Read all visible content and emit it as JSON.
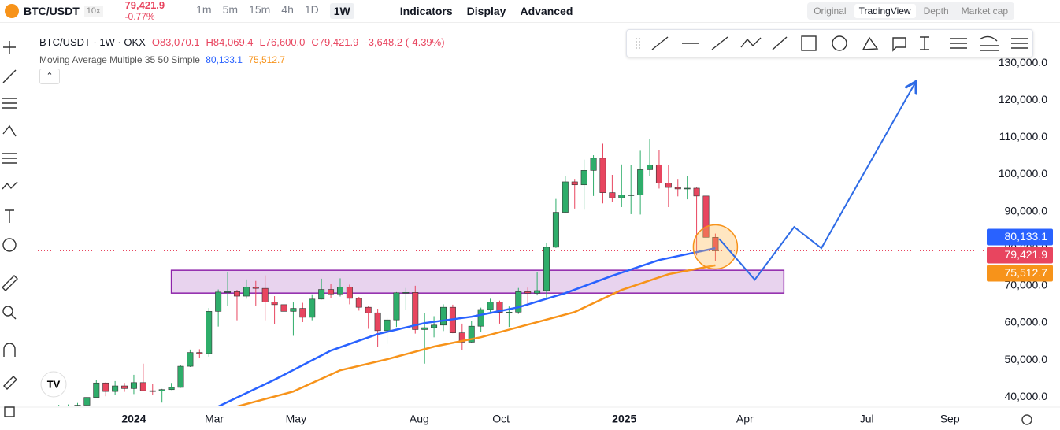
{
  "ui": {
    "symbol": "BTC/USDT",
    "leverage": "10x",
    "last_price": "79,421.9",
    "change": "-0.77%",
    "intervals": [
      "1m",
      "5m",
      "15m",
      "4h",
      "1D",
      "1W"
    ],
    "menu": [
      "Indicators",
      "Display",
      "Advanced"
    ],
    "views": [
      "Original",
      "TradingView",
      "Depth",
      "Market cap"
    ]
  },
  "legend": {
    "symbol_line": "BTC/USDT · 1W · OKX",
    "ohlc": [
      "O83,070.1",
      "H84,069.4",
      "L76,600.0",
      "C79,421.9",
      "-3,648.2 (-4.39%)"
    ],
    "indicator": "Moving Average Multiple 35 50 Simple"
  },
  "chart_data": {
    "type": "candlestick",
    "categories": [
      null,
      null,
      null,
      null,
      null,
      null,
      null,
      null,
      null,
      null,
      null,
      null,
      null,
      null,
      null,
      null,
      null,
      null,
      null,
      null,
      null,
      null,
      null,
      null,
      null,
      null,
      null,
      null,
      null,
      null,
      null,
      null,
      null,
      null,
      null,
      null,
      null,
      null,
      null,
      null,
      null,
      null,
      null,
      null,
      null,
      null,
      null,
      null,
      null,
      null,
      null,
      null,
      null,
      null,
      null,
      null,
      null,
      null,
      null,
      null,
      null,
      null,
      null,
      null,
      null,
      null,
      null,
      null,
      null,
      null,
      null
    ],
    "open": [
      35000,
      37000,
      37400,
      37800,
      39900,
      43800,
      41500,
      43000,
      42300,
      43900,
      41700,
      41600,
      42000,
      42600,
      48300,
      52000,
      51700,
      63100,
      68300,
      68400,
      67200,
      69600,
      69300,
      65600,
      64900,
      63100,
      63900,
      61500,
      66400,
      69000,
      67800,
      69600,
      66600,
      64200,
      62700,
      57900,
      60800,
      68100,
      68200,
      58200,
      58700,
      59400,
      64200,
      57300,
      54800,
      59100,
      63600,
      65600,
      62800,
      62900,
      68400,
      68000,
      68700,
      80400,
      89800,
      98000,
      97200,
      101100,
      104400,
      95100,
      93700,
      94500,
      94500,
      101300,
      102600,
      97700,
      96500,
      96100,
      96300,
      94200,
      83070.1
    ],
    "high": [
      37900,
      38000,
      38400,
      40000,
      44700,
      44000,
      44300,
      43800,
      46000,
      49000,
      43500,
      42200,
      43800,
      48500,
      52800,
      52900,
      64000,
      69000,
      73800,
      68900,
      71700,
      71300,
      72800,
      67200,
      67200,
      65500,
      65400,
      67700,
      71900,
      70600,
      72000,
      70300,
      67000,
      64500,
      63800,
      61400,
      68300,
      69400,
      70000,
      62700,
      61800,
      65000,
      64900,
      59800,
      60600,
      64100,
      66500,
      66000,
      64400,
      69400,
      69500,
      73600,
      81500,
      93400,
      99600,
      98800,
      104000,
      105200,
      108300,
      99900,
      102700,
      102500,
      106400,
      109500,
      106500,
      102500,
      98800,
      99500,
      96500,
      95000,
      84069.4
    ],
    "low": [
      34500,
      35000,
      35600,
      37500,
      39900,
      40200,
      40500,
      41400,
      40800,
      41700,
      40600,
      38500,
      41900,
      42500,
      48100,
      50500,
      50900,
      59000,
      64500,
      60700,
      66500,
      64500,
      60700,
      59600,
      62800,
      56500,
      60200,
      60700,
      66300,
      66600,
      67100,
      65000,
      63300,
      58400,
      53500,
      54300,
      58900,
      63400,
      57100,
      49000,
      56100,
      57800,
      57200,
      52600,
      54600,
      57600,
      62600,
      59800,
      58900,
      62400,
      65100,
      67400,
      66800,
      80200,
      89500,
      90800,
      90500,
      94200,
      92200,
      92500,
      91200,
      89300,
      89200,
      99500,
      96200,
      91200,
      94100,
      93300,
      78200,
      80000,
      76600
    ],
    "close": [
      37000,
      37400,
      37800,
      39900,
      43800,
      41500,
      43000,
      42300,
      43900,
      41700,
      41600,
      42000,
      42600,
      48300,
      52000,
      51700,
      63100,
      68300,
      68400,
      67200,
      69600,
      69300,
      65600,
      64900,
      63100,
      63900,
      61500,
      66400,
      69000,
      67800,
      69600,
      66600,
      64200,
      62700,
      57900,
      60800,
      68100,
      68200,
      58200,
      58700,
      59400,
      64200,
      57300,
      54800,
      59100,
      63600,
      65600,
      62800,
      62900,
      68400,
      68000,
      68700,
      80400,
      89800,
      98000,
      97200,
      101100,
      104400,
      95100,
      93700,
      94500,
      94500,
      101300,
      102600,
      97700,
      96500,
      96100,
      96300,
      94200,
      83070.1,
      79421.9
    ],
    "up_color": "#2ead6a",
    "down_color": "#e8455f",
    "lines": [
      {
        "color": "#2962ff",
        "x": [
          17,
          23,
          29,
          34,
          39,
          44,
          49,
          54,
          59,
          64,
          70
        ],
        "values": [
          37450,
          44670,
          52520,
          56980,
          59950,
          61650,
          64200,
          68020,
          72690,
          76930,
          80133.1
        ]
      },
      {
        "color": "#f7931a",
        "x": [
          19,
          25,
          30,
          35,
          40,
          45,
          50,
          55,
          60,
          65,
          70
        ],
        "values": [
          37450,
          41490,
          47220,
          50190,
          53590,
          56130,
          59530,
          62930,
          68870,
          73110,
          75512.7
        ]
      }
    ],
    "projection": {
      "color": "#2e6be6",
      "x": [
        70.4,
        74.2,
        78.4,
        81.3,
        91.3
      ],
      "values": [
        82670,
        71630,
        85850,
        80120,
        124700
      ]
    },
    "zone": {
      "x": [
        12.0,
        77.3
      ],
      "y": [
        68020,
        74180
      ],
      "color": "#8e24aa"
    },
    "price_tags": [
      {
        "value": 80133.1,
        "label": "80,133.1",
        "color": "#2962ff"
      },
      {
        "value": 79421.9,
        "label": "79,421.9",
        "color": "#e8455f"
      },
      {
        "value": 75512.7,
        "label": "75,512.7",
        "color": "#f7931a"
      }
    ],
    "xlim": [
      -2.91,
      98.68
    ],
    "ylim": [
      37700,
      139600
    ],
    "xticks": [
      {
        "value": 8,
        "label": "2024"
      },
      {
        "value": 16.57,
        "label": "Mar"
      },
      {
        "value": 25.29,
        "label": "May"
      },
      {
        "value": 38.43,
        "label": "Aug"
      },
      {
        "value": 47.14,
        "label": "Oct"
      },
      {
        "value": 60.29,
        "label": "2025"
      },
      {
        "value": 73.14,
        "label": "Apr"
      },
      {
        "value": 86.14,
        "label": "Jul"
      },
      {
        "value": 95,
        "label": "Sep"
      }
    ],
    "yticks": [
      {
        "value": 40000,
        "label": "40,000.0"
      },
      {
        "value": 50000,
        "label": "50,000.0"
      },
      {
        "value": 60000,
        "label": "60,000.0"
      },
      {
        "value": 70000,
        "label": "70,000.0"
      },
      {
        "value": 80000,
        "label": "80,000.0"
      },
      {
        "value": 90000,
        "label": "90,000.0"
      },
      {
        "value": 100000,
        "label": "100,000.0"
      },
      {
        "value": 110000,
        "label": "110,000.0"
      },
      {
        "value": 120000,
        "label": "120,000.0"
      },
      {
        "value": 130000,
        "label": "130,000.0"
      }
    ],
    "grid": false
  }
}
